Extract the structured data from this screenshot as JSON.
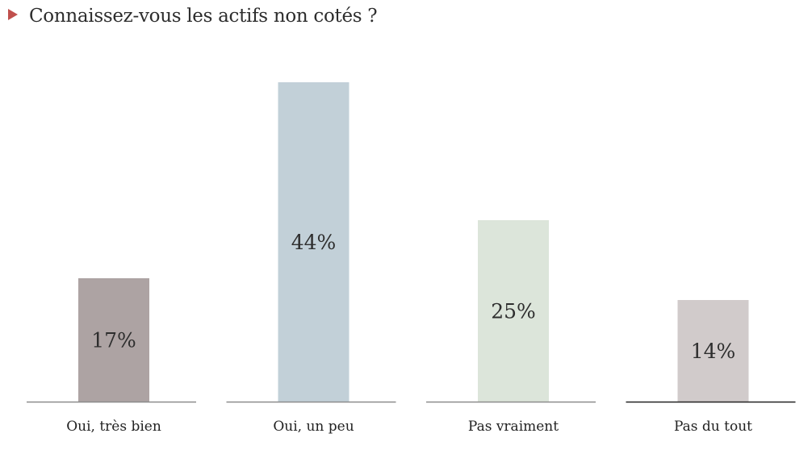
{
  "title": "Connaissez-vous les actifs non cotés ?",
  "colors": {
    "marker": "#c0504d",
    "bars": [
      "#ada3a3",
      "#c2d0d8",
      "#dce5da",
      "#d1cbcb"
    ],
    "baseline": [
      "#8c8c8c",
      "#8c8c8c",
      "#8c8c8c",
      "#222222"
    ]
  },
  "chart_data": {
    "type": "bar",
    "categories": [
      "Oui, très bien",
      "Oui, un peu",
      "Pas vraiment",
      "Pas du tout"
    ],
    "values": [
      17,
      44,
      25,
      14
    ],
    "value_labels": [
      "17%",
      "44%",
      "25%",
      "14%"
    ],
    "unit": "%",
    "ylim": [
      0,
      44
    ],
    "grid": false,
    "legend": "none",
    "title": "Connaissez-vous les actifs non cotés ?"
  }
}
